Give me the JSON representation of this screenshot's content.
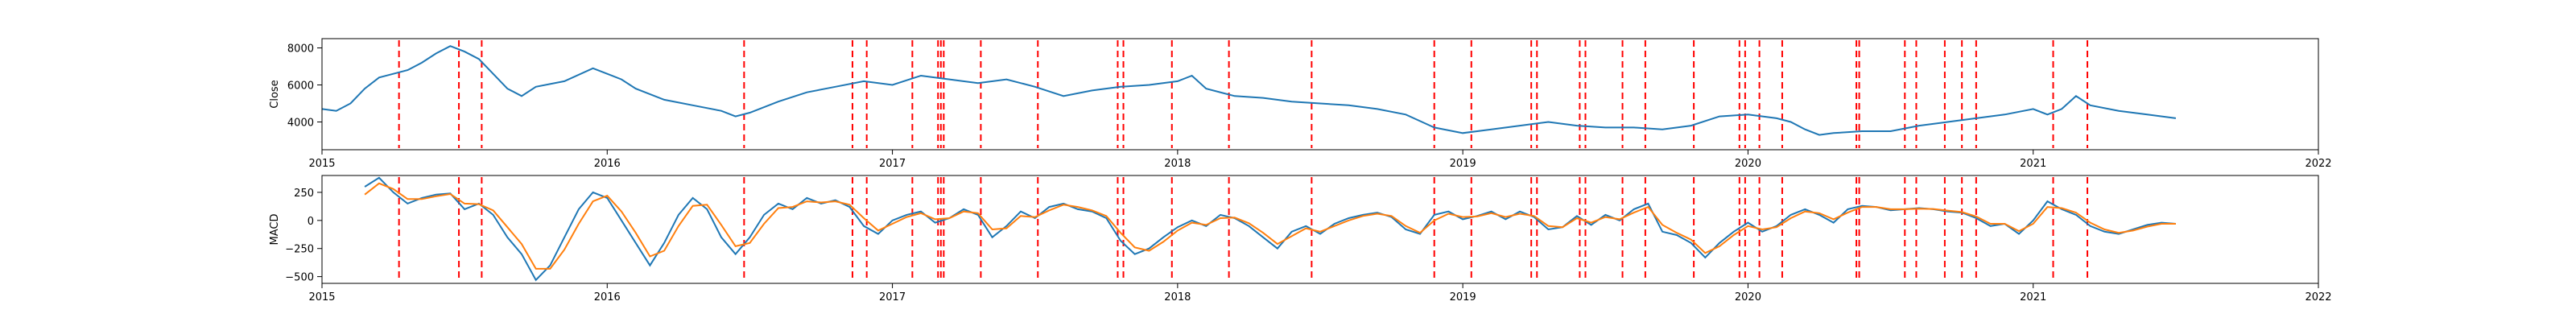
{
  "chart_data": [
    {
      "type": "line",
      "ylabel": "Close",
      "xlim": [
        2015,
        2022
      ],
      "ylim": [
        2500,
        8500
      ],
      "x_ticks": [
        "2015",
        "2016",
        "2017",
        "2018",
        "2019",
        "2020",
        "2021",
        "2022"
      ],
      "y_ticks": [
        4000,
        6000,
        8000
      ],
      "colors": {
        "close": "#1f77b4",
        "signal_lines": "#ff0000"
      },
      "series": [
        {
          "x": [
            2015.0,
            2015.05,
            2015.1,
            2015.15,
            2015.2,
            2015.25,
            2015.3,
            2015.35,
            2015.4,
            2015.45,
            2015.5,
            2015.55,
            2015.6,
            2015.65,
            2015.7,
            2015.75,
            2015.85,
            2015.95,
            2016.0,
            2016.05,
            2016.1,
            2016.2,
            2016.3,
            2016.4,
            2016.45,
            2016.5,
            2016.6,
            2016.7,
            2016.8,
            2016.9,
            2017.0,
            2017.1,
            2017.2,
            2017.3,
            2017.4,
            2017.5,
            2017.6,
            2017.7,
            2017.8,
            2017.9,
            2018.0,
            2018.05,
            2018.1,
            2018.2,
            2018.3,
            2018.4,
            2018.5,
            2018.6,
            2018.7,
            2018.8,
            2018.9,
            2019.0,
            2019.1,
            2019.2,
            2019.3,
            2019.4,
            2019.5,
            2019.6,
            2019.7,
            2019.8,
            2019.9,
            2020.0,
            2020.1,
            2020.15,
            2020.2,
            2020.25,
            2020.3,
            2020.4,
            2020.5,
            2020.6,
            2020.7,
            2020.8,
            2020.9,
            2021.0,
            2021.05,
            2021.1,
            2021.15,
            2021.2,
            2021.3,
            2021.4,
            2021.5
          ],
          "values": [
            4700,
            4600,
            5000,
            5800,
            6400,
            6600,
            6800,
            7200,
            7700,
            8100,
            7800,
            7400,
            6600,
            5800,
            5400,
            5900,
            6200,
            6900,
            6600,
            6300,
            5800,
            5200,
            4900,
            4600,
            4300,
            4500,
            5100,
            5600,
            5900,
            6200,
            6000,
            6500,
            6300,
            6100,
            6300,
            5900,
            5400,
            5700,
            5900,
            6000,
            6200,
            6500,
            5800,
            5400,
            5300,
            5100,
            5000,
            4900,
            4700,
            4400,
            3700,
            3400,
            3600,
            3800,
            4000,
            3800,
            3700,
            3700,
            3600,
            3800,
            4300,
            4400,
            4200,
            4000,
            3600,
            3300,
            3400,
            3500,
            3500,
            3800,
            4000,
            4200,
            4400,
            4700,
            4400,
            4700,
            5400,
            4900,
            4600,
            4400,
            4200
          ]
        }
      ]
    },
    {
      "type": "line",
      "ylabel": "MACD",
      "xlim": [
        2015,
        2022
      ],
      "ylim": [
        -560,
        400
      ],
      "x_ticks": [
        "2015",
        "2016",
        "2017",
        "2018",
        "2019",
        "2020",
        "2021",
        "2022"
      ],
      "y_ticks": [
        -500,
        -250,
        0,
        250
      ],
      "colors": {
        "macd": "#1f77b4",
        "signal": "#ff7f0e",
        "signal_lines": "#ff0000"
      },
      "series": [
        {
          "x": [
            2015.15,
            2015.2,
            2015.25,
            2015.3,
            2015.35,
            2015.4,
            2015.45,
            2015.5,
            2015.55,
            2015.6,
            2015.65,
            2015.7,
            2015.75,
            2015.8,
            2015.85,
            2015.9,
            2015.95,
            2016.0,
            2016.05,
            2016.1,
            2016.15,
            2016.2,
            2016.25,
            2016.3,
            2016.35,
            2016.4,
            2016.45,
            2016.5,
            2016.55,
            2016.6,
            2016.65,
            2016.7,
            2016.75,
            2016.8,
            2016.85,
            2016.9,
            2016.95,
            2017.0,
            2017.05,
            2017.1,
            2017.15,
            2017.2,
            2017.25,
            2017.3,
            2017.35,
            2017.4,
            2017.45,
            2017.5,
            2017.55,
            2017.6,
            2017.65,
            2017.7,
            2017.75,
            2017.8,
            2017.85,
            2017.9,
            2017.95,
            2018.0,
            2018.05,
            2018.1,
            2018.15,
            2018.2,
            2018.25,
            2018.3,
            2018.35,
            2018.4,
            2018.45,
            2018.5,
            2018.55,
            2018.6,
            2018.65,
            2018.7,
            2018.75,
            2018.8,
            2018.85,
            2018.9,
            2018.95,
            2019.0,
            2019.05,
            2019.1,
            2019.15,
            2019.2,
            2019.25,
            2019.3,
            2019.35,
            2019.4,
            2019.45,
            2019.5,
            2019.55,
            2019.6,
            2019.65,
            2019.7,
            2019.75,
            2019.8,
            2019.85,
            2019.9,
            2019.95,
            2020.0,
            2020.05,
            2020.1,
            2020.15,
            2020.2,
            2020.25,
            2020.3,
            2020.35,
            2020.4,
            2020.45,
            2020.5,
            2020.55,
            2020.6,
            2020.65,
            2020.7,
            2020.75,
            2020.8,
            2020.85,
            2020.9,
            2020.95,
            2021.0,
            2021.05,
            2021.1,
            2021.15,
            2021.2,
            2021.25,
            2021.3,
            2021.35,
            2021.4,
            2021.45,
            2021.5
          ],
          "name": "",
          "values": [
            300,
            380,
            250,
            150,
            200,
            230,
            240,
            100,
            150,
            50,
            -150,
            -300,
            -530,
            -400,
            -150,
            100,
            250,
            200,
            0,
            -200,
            -400,
            -200,
            50,
            200,
            100,
            -150,
            -300,
            -150,
            50,
            150,
            100,
            200,
            150,
            180,
            120,
            -50,
            -120,
            0,
            50,
            80,
            -20,
            20,
            100,
            50,
            -150,
            -50,
            80,
            20,
            120,
            150,
            100,
            80,
            20,
            -180,
            -300,
            -250,
            -150,
            -60,
            0,
            -50,
            50,
            20,
            -50,
            -150,
            -250,
            -100,
            -50,
            -120,
            -30,
            20,
            50,
            70,
            30,
            -80,
            -120,
            50,
            80,
            10,
            40,
            80,
            10,
            80,
            30,
            -80,
            -60,
            40,
            -40,
            50,
            0,
            100,
            150,
            -100,
            -130,
            -200,
            -330,
            -200,
            -100,
            -20,
            -100,
            -50,
            50,
            100,
            50,
            -20,
            100,
            130,
            120,
            90,
            100,
            110,
            100,
            80,
            70,
            20,
            -50,
            -30,
            -120,
            0,
            170,
            100,
            50,
            -50,
            -100,
            -120,
            -80,
            -40,
            -20,
            -30
          ],
          "color_key": "macd"
        },
        {
          "x": [
            2015.15,
            2015.2,
            2015.25,
            2015.3,
            2015.35,
            2015.4,
            2015.45,
            2015.5,
            2015.55,
            2015.6,
            2015.65,
            2015.7,
            2015.75,
            2015.8,
            2015.85,
            2015.9,
            2015.95,
            2016.0,
            2016.05,
            2016.1,
            2016.15,
            2016.2,
            2016.25,
            2016.3,
            2016.35,
            2016.4,
            2016.45,
            2016.5,
            2016.55,
            2016.6,
            2016.65,
            2016.7,
            2016.75,
            2016.8,
            2016.85,
            2016.9,
            2016.95,
            2017.0,
            2017.05,
            2017.1,
            2017.15,
            2017.2,
            2017.25,
            2017.3,
            2017.35,
            2017.4,
            2017.45,
            2017.5,
            2017.55,
            2017.6,
            2017.65,
            2017.7,
            2017.75,
            2017.8,
            2017.85,
            2017.9,
            2017.95,
            2018.0,
            2018.05,
            2018.1,
            2018.15,
            2018.2,
            2018.25,
            2018.3,
            2018.35,
            2018.4,
            2018.45,
            2018.5,
            2018.55,
            2018.6,
            2018.65,
            2018.7,
            2018.75,
            2018.8,
            2018.85,
            2018.9,
            2018.95,
            2019.0,
            2019.05,
            2019.1,
            2019.15,
            2019.2,
            2019.25,
            2019.3,
            2019.35,
            2019.4,
            2019.45,
            2019.5,
            2019.55,
            2019.6,
            2019.65,
            2019.7,
            2019.75,
            2019.8,
            2019.85,
            2019.9,
            2019.95,
            2020.0,
            2020.05,
            2020.1,
            2020.15,
            2020.2,
            2020.25,
            2020.3,
            2020.35,
            2020.4,
            2020.45,
            2020.5,
            2020.55,
            2020.6,
            2020.65,
            2020.7,
            2020.75,
            2020.8,
            2020.85,
            2020.9,
            2020.95,
            2021.0,
            2021.05,
            2021.1,
            2021.15,
            2021.2,
            2021.25,
            2021.3,
            2021.35,
            2021.4,
            2021.45,
            2021.5
          ],
          "name": "",
          "values": [
            230,
            330,
            280,
            190,
            190,
            215,
            235,
            150,
            145,
            90,
            -60,
            -210,
            -430,
            -430,
            -260,
            -30,
            170,
            220,
            80,
            -110,
            -320,
            -270,
            -50,
            130,
            140,
            -40,
            -230,
            -200,
            -30,
            110,
            120,
            170,
            160,
            170,
            140,
            20,
            -90,
            -30,
            30,
            65,
            10,
            20,
            80,
            65,
            -80,
            -70,
            40,
            30,
            90,
            140,
            120,
            90,
            40,
            -110,
            -240,
            -270,
            -190,
            -90,
            -20,
            -40,
            20,
            25,
            -25,
            -110,
            -210,
            -140,
            -70,
            -100,
            -50,
            0,
            40,
            60,
            40,
            -50,
            -110,
            0,
            60,
            30,
            35,
            65,
            30,
            60,
            40,
            -50,
            -60,
            20,
            -20,
            30,
            10,
            70,
            120,
            -40,
            -110,
            -170,
            -290,
            -230,
            -130,
            -50,
            -80,
            -60,
            20,
            80,
            65,
            10,
            70,
            120,
            120,
            100,
            100,
            105,
            102,
            88,
            75,
            35,
            -30,
            -30,
            -95,
            -30,
            120,
            110,
            70,
            -20,
            -80,
            -110,
            -90,
            -55,
            -30,
            -30
          ],
          "color_key": "signal"
        }
      ]
    }
  ],
  "signal_dates": [
    2015.27,
    2015.48,
    2015.56,
    2016.48,
    2016.86,
    2016.91,
    2017.07,
    2017.16,
    2017.17,
    2017.18,
    2017.31,
    2017.51,
    2017.79,
    2017.81,
    2017.98,
    2018.18,
    2018.47,
    2018.9,
    2019.03,
    2019.24,
    2019.26,
    2019.41,
    2019.43,
    2019.56,
    2019.64,
    2019.81,
    2019.97,
    2019.99,
    2020.04,
    2020.12,
    2020.38,
    2020.39,
    2020.55,
    2020.59,
    2020.69,
    2020.75,
    2020.8,
    2021.07,
    2021.19
  ]
}
